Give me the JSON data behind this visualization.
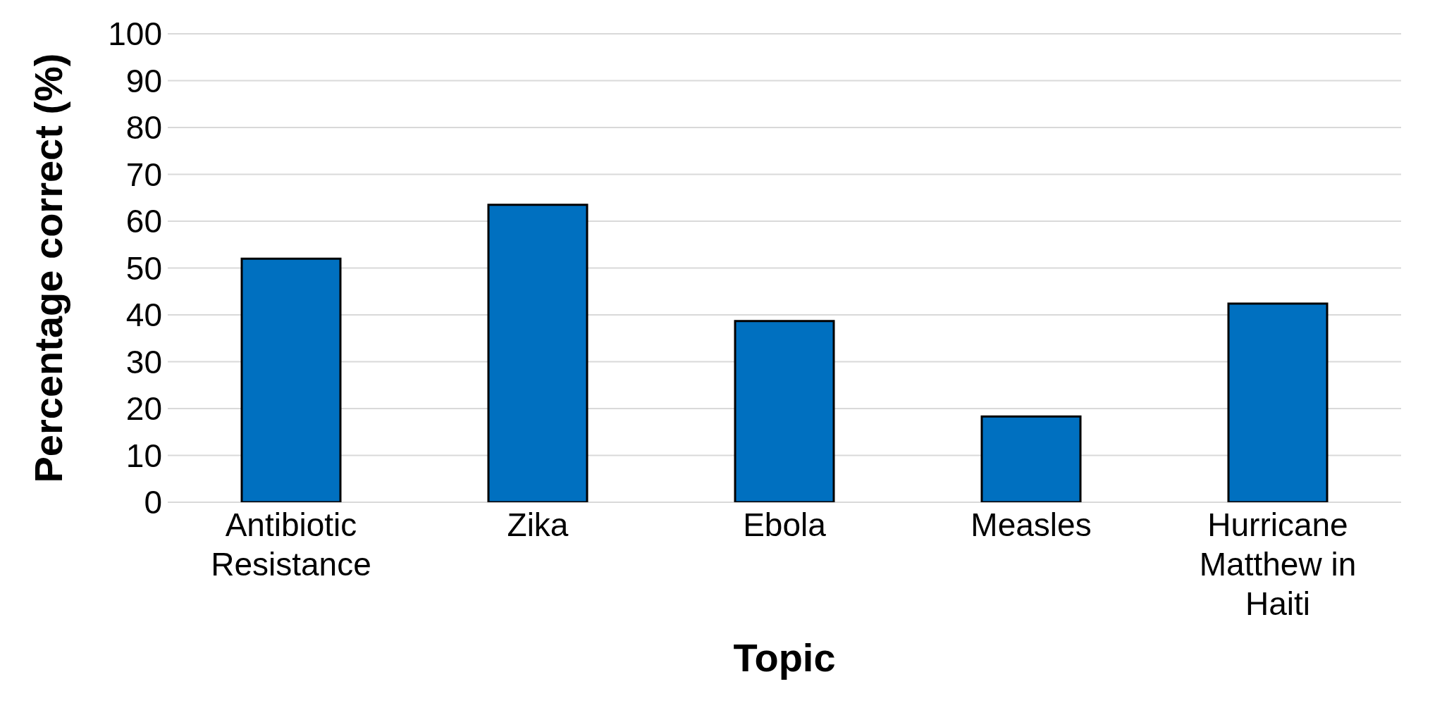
{
  "chart_data": {
    "type": "bar",
    "xlabel": "Topic",
    "ylabel": "Percentage correct (%)",
    "categories": [
      "Antibiotic Resistance",
      "Zika",
      "Ebola",
      "Measles",
      "Hurricane Matthew in Haiti"
    ],
    "values": [
      52,
      63.5,
      38.7,
      18.3,
      42.4
    ],
    "color": "#0070c0",
    "ylim": [
      0,
      100
    ],
    "yticks": [
      0,
      10,
      20,
      30,
      40,
      50,
      60,
      70,
      80,
      90,
      100
    ],
    "grid": "y"
  }
}
